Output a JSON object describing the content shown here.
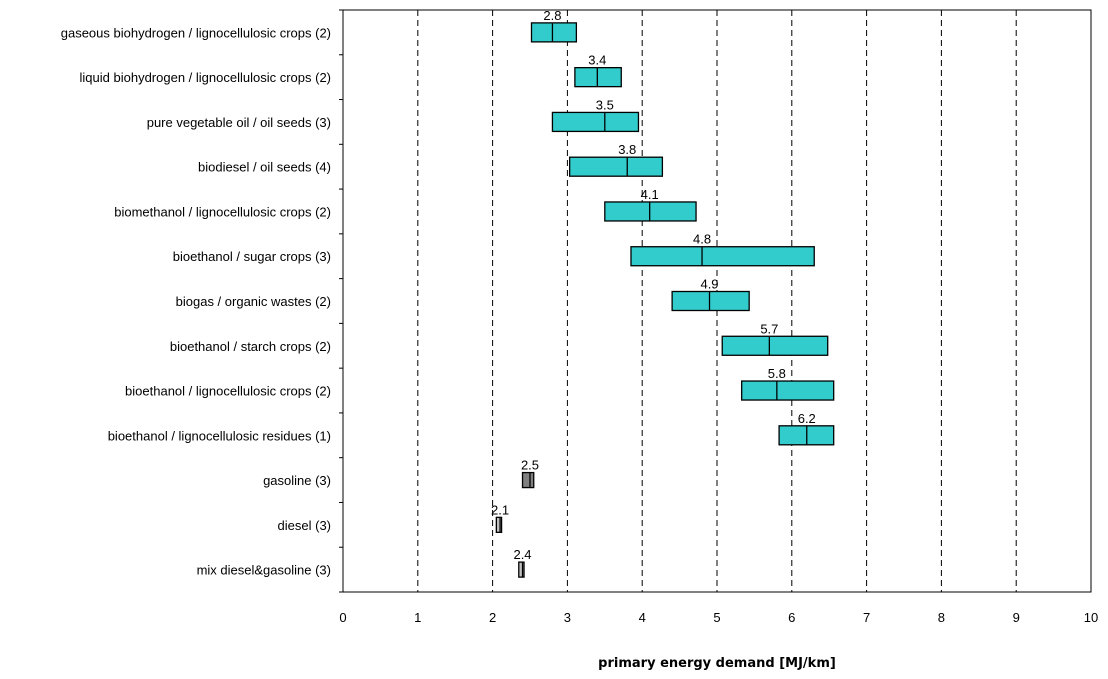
{
  "chart_data": {
    "type": "bar",
    "orientation": "horizontal",
    "subtype": "floating-range-with-marker",
    "xlabel": "primary energy demand [MJ/km]",
    "xlim": [
      0,
      10
    ],
    "xticks": [
      "0",
      "1",
      "2",
      "3",
      "4",
      "5",
      "6",
      "7",
      "8",
      "9",
      "10"
    ],
    "grid": "vertical dashed",
    "categories": [
      "gaseous biohydrogen / lignocellulosic crops (2)",
      "liquid biohydrogen / lignocellulosic crops (2)",
      "pure vegetable oil / oil seeds (3)",
      "biodiesel / oil seeds (4)",
      "biomethanol / lignocellulosic crops (2)",
      "bioethanol / sugar crops (3)",
      "biogas / organic wastes (2)",
      "bioethanol / starch crops (2)",
      "bioethanol / lignocellulosic crops (2)",
      "bioethanol / lignocellulosic residues (1)",
      "gasoline (3)",
      "diesel (3)",
      "mix diesel&gasoline (3)"
    ],
    "series": [
      {
        "min": [
          2.52,
          3.1,
          2.8,
          3.03,
          3.5,
          3.85,
          4.4,
          5.07,
          5.33,
          5.83,
          2.4,
          2.05,
          2.35
        ],
        "max": [
          3.12,
          3.72,
          3.95,
          4.27,
          4.72,
          6.3,
          5.43,
          6.48,
          6.56,
          6.56,
          2.55,
          2.12,
          2.42
        ],
        "marker": [
          2.8,
          3.4,
          3.5,
          3.8,
          4.1,
          4.8,
          4.9,
          5.7,
          5.8,
          6.2,
          2.5,
          2.1,
          2.4
        ],
        "labels": [
          "2.8",
          "3.4",
          "3.5",
          "3.8",
          "4.1",
          "4.8",
          "4.9",
          "5.7",
          "5.8",
          "6.2",
          "2.5",
          "2.1",
          "2.4"
        ],
        "colors": [
          "#33CCCC",
          "#33CCCC",
          "#33CCCC",
          "#33CCCC",
          "#33CCCC",
          "#33CCCC",
          "#33CCCC",
          "#33CCCC",
          "#33CCCC",
          "#33CCCC",
          "#808080",
          "#C0C0C0",
          "#C0C0C0"
        ]
      }
    ]
  }
}
